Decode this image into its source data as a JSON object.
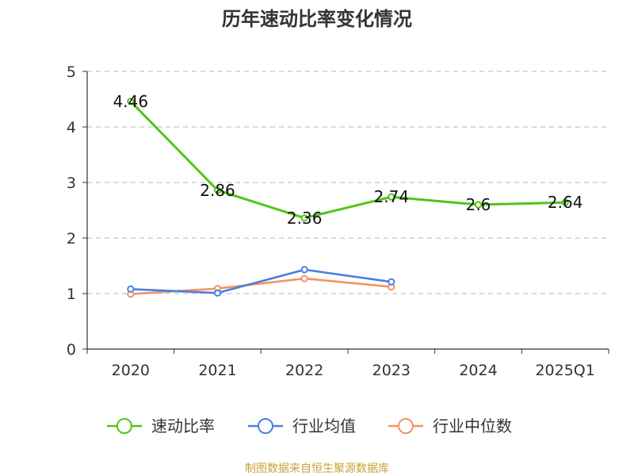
{
  "chart_data": {
    "type": "line",
    "title": "历年速动比率变化情况",
    "categories": [
      "2020",
      "2021",
      "2022",
      "2023",
      "2024",
      "2025Q1"
    ],
    "ylim": [
      0,
      5
    ],
    "yticks": [
      "0",
      "1",
      "2",
      "3",
      "4",
      "5"
    ],
    "grid": true,
    "legend_position": "bottom",
    "series": [
      {
        "name": "速动比率",
        "color": "#52c41a",
        "values": [
          4.46,
          2.86,
          2.36,
          2.74,
          2.6,
          2.64
        ],
        "labels": [
          "4.46",
          "2.86",
          "2.36",
          "2.74",
          "2.6",
          "2.64"
        ]
      },
      {
        "name": "行业均值",
        "color": "#4a7fe0",
        "values": [
          1.08,
          1.01,
          1.43,
          1.21,
          null,
          null
        ]
      },
      {
        "name": "行业中位数",
        "color": "#f59260",
        "values": [
          0.99,
          1.09,
          1.27,
          1.12,
          null,
          null
        ]
      }
    ]
  },
  "source": {
    "text": "制图数据来自恒生聚源数据库",
    "color": "#c9a23a"
  }
}
